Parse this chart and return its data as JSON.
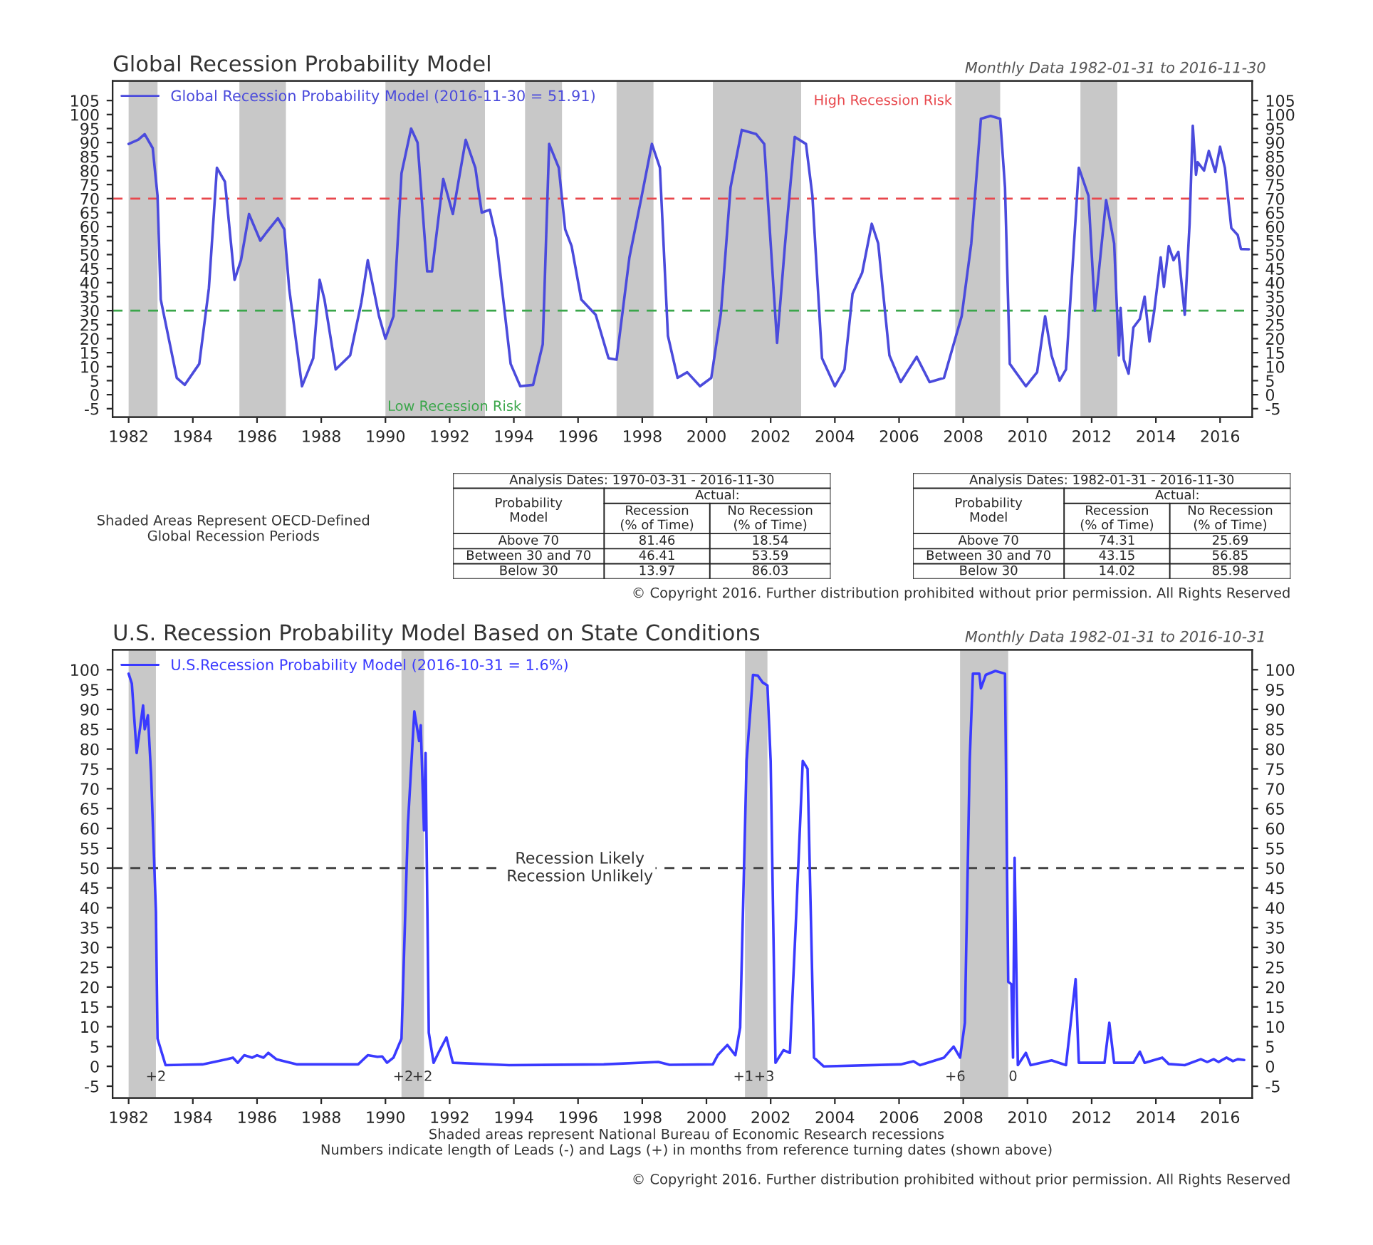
{
  "chart_data": [
    {
      "type": "line",
      "title": "Global Recession Probability Model",
      "subtitle": "Monthly Data 1982-01-31 to 2016-11-30",
      "series": [
        {
          "name": "Global Recession Probability Model (2016-11-30 = 51.91)",
          "color": "#4b4bdc",
          "x": [
            1982.0,
            1982.3,
            1982.5,
            1982.75,
            1982.9,
            1983.0,
            1983.5,
            1983.75,
            1984.2,
            1984.5,
            1984.75,
            1985.0,
            1985.3,
            1985.5,
            1985.75,
            1986.1,
            1986.3,
            1986.65,
            1986.85,
            1987.0,
            1987.4,
            1987.75,
            1987.95,
            1988.1,
            1988.45,
            1988.9,
            1989.25,
            1989.45,
            1989.8,
            1990.0,
            1990.25,
            1990.5,
            1990.8,
            1991.0,
            1991.3,
            1991.45,
            1991.8,
            1992.1,
            1992.5,
            1992.8,
            1993.0,
            1993.25,
            1993.45,
            1993.9,
            1994.2,
            1994.6,
            1994.9,
            1995.0,
            1995.1,
            1995.4,
            1995.6,
            1995.8,
            1996.1,
            1996.55,
            1996.95,
            1997.2,
            1997.6,
            1997.95,
            1998.3,
            1998.55,
            1998.8,
            1999.1,
            1999.4,
            1999.8,
            2000.15,
            2000.45,
            2000.75,
            2001.1,
            2001.55,
            2001.8,
            2002.0,
            2002.2,
            2002.45,
            2002.75,
            2003.1,
            2003.3,
            2003.6,
            2004.0,
            2004.3,
            2004.55,
            2004.85,
            2005.15,
            2005.35,
            2005.7,
            2006.05,
            2006.55,
            2006.95,
            2007.4,
            2007.95,
            2008.25,
            2008.55,
            2008.85,
            2009.15,
            2009.3,
            2009.45,
            2009.95,
            2010.3,
            2010.55,
            2010.75,
            2011.0,
            2011.2,
            2011.6,
            2011.9,
            2012.1,
            2012.45,
            2012.7,
            2012.85,
            2012.9,
            2013.0,
            2013.15,
            2013.3,
            2013.5,
            2013.65,
            2013.8,
            2013.95,
            2014.15,
            2014.25,
            2014.4,
            2014.55,
            2014.7,
            2014.9,
            2015.05,
            2015.15,
            2015.25,
            2015.3,
            2015.5,
            2015.65,
            2015.85,
            2016.0,
            2016.15,
            2016.35,
            2016.55,
            2016.65,
            2016.9
          ],
          "values": [
            89.5,
            91,
            93,
            88,
            71,
            34,
            6,
            3.5,
            11,
            38,
            81,
            76,
            41,
            48,
            64.5,
            55,
            58,
            63,
            59,
            38,
            3,
            13,
            41,
            34,
            9,
            14,
            33,
            48,
            28,
            20,
            28,
            79,
            95,
            90,
            44,
            44,
            77,
            64.5,
            91,
            81,
            65,
            66,
            56,
            11,
            3,
            3.5,
            18,
            54,
            89.5,
            81,
            59,
            53,
            34,
            28.5,
            13,
            12.5,
            49,
            69,
            89.5,
            81,
            21,
            6,
            8,
            3,
            6,
            29,
            74,
            94.5,
            93,
            89.5,
            54,
            18.5,
            54,
            92,
            89.5,
            71,
            13,
            3,
            9,
            36,
            43.5,
            61,
            54,
            14,
            4.5,
            13.5,
            4.5,
            6,
            28,
            54,
            98.5,
            99.5,
            98.5,
            74,
            11,
            3,
            8,
            28,
            14,
            5,
            9,
            81,
            71,
            30,
            69.5,
            54,
            14,
            31,
            12.5,
            7.5,
            24,
            27,
            35,
            19,
            30,
            49,
            38.5,
            53,
            48,
            51,
            28.5,
            61,
            96,
            78.5,
            83,
            80,
            87,
            79.5,
            88.5,
            81,
            59.5,
            57,
            52,
            51.9
          ]
        }
      ],
      "xlim": [
        1981.5,
        2017.0
      ],
      "xticks": [
        1982,
        1984,
        1986,
        1988,
        1990,
        1992,
        1994,
        1996,
        1998,
        2000,
        2002,
        2004,
        2006,
        2008,
        2010,
        2012,
        2014,
        2016
      ],
      "ylim": [
        -8,
        112
      ],
      "yticks": [
        -5,
        0,
        5,
        10,
        15,
        20,
        25,
        30,
        35,
        40,
        45,
        50,
        55,
        60,
        65,
        70,
        75,
        80,
        85,
        90,
        95,
        100,
        105
      ],
      "y2lim": [
        -8,
        112
      ],
      "y2ticks": [
        -5,
        0,
        5,
        10,
        15,
        20,
        25,
        30,
        35,
        40,
        45,
        50,
        55,
        60,
        65,
        70,
        75,
        80,
        85,
        90,
        95,
        100,
        105
      ],
      "ref_lines": [
        {
          "axis": "y",
          "value": 70,
          "label": "High Recession Risk",
          "color": "#e8474c",
          "line_style": "dashed"
        },
        {
          "axis": "y",
          "value": 30,
          "label": "Low Recession Risk",
          "color": "#3aa64a",
          "line_style": "dashed"
        }
      ],
      "bands": [
        {
          "axis": "x",
          "from": 1982.0,
          "to": 1982.9,
          "color": "#c8c8c8"
        },
        {
          "axis": "x",
          "from": 1985.45,
          "to": 1986.9,
          "color": "#c8c8c8"
        },
        {
          "axis": "x",
          "from": 1990.0,
          "to": 1993.1,
          "color": "#c8c8c8"
        },
        {
          "axis": "x",
          "from": 1994.35,
          "to": 1995.5,
          "color": "#c8c8c8"
        },
        {
          "axis": "x",
          "from": 1997.2,
          "to": 1998.35,
          "color": "#c8c8c8"
        },
        {
          "axis": "x",
          "from": 2000.2,
          "to": 2002.95,
          "color": "#c8c8c8"
        },
        {
          "axis": "x",
          "from": 2007.75,
          "to": 2009.15,
          "color": "#c8c8c8"
        },
        {
          "axis": "x",
          "from": 2011.65,
          "to": 2012.8,
          "color": "#c8c8c8"
        }
      ],
      "annotations": [
        "Shaded Areas Represent OECD-Defined\nGlobal Recession Periods",
        "© Copyright 2016. Further distribution prohibited without prior permission. All Rights Reserved"
      ],
      "legend": "top left",
      "marker": "none",
      "line_style": "solid",
      "grid": false
    },
    {
      "type": "other",
      "title": "Analysis Dates: 1970-03-31 - 2016-11-30",
      "annotations": [
        "Actual:",
        "Probability\nModel",
        "Recession\n(% of Time)",
        "No Recession\n(% of Time)",
        "Above 70",
        "81.46",
        "18.54",
        "Between 30 and 70",
        "46.41",
        "53.59",
        "Below 30",
        "13.97",
        "86.03"
      ]
    },
    {
      "type": "other",
      "title": "Analysis Dates: 1982-01-31 - 2016-11-30",
      "annotations": [
        "Actual:",
        "Probability\nModel",
        "Recession\n(% of Time)",
        "No Recession\n(% of Time)",
        "Above 70",
        "74.31",
        "25.69",
        "Between 30 and 70",
        "43.15",
        "56.85",
        "Below 30",
        "14.02",
        "85.98"
      ]
    },
    {
      "type": "line",
      "title": "U.S. Recession Probability Model Based on State Conditions",
      "subtitle": "Monthly Data 1982-01-31 to 2016-10-31",
      "series": [
        {
          "name": "U.S.Recession Probability Model (2016-10-31 = 1.6%)",
          "color": "#3a3aff",
          "x": [
            1982.0,
            1982.1,
            1982.25,
            1982.45,
            1982.5,
            1982.6,
            1982.7,
            1982.85,
            1982.9,
            1983.15,
            1984.3,
            1985.05,
            1985.25,
            1985.4,
            1985.6,
            1985.85,
            1986.0,
            1986.2,
            1986.35,
            1986.6,
            1987.25,
            1989.15,
            1989.45,
            1989.75,
            1989.9,
            1990.05,
            1990.25,
            1990.5,
            1990.7,
            1990.9,
            1991.05,
            1991.1,
            1991.2,
            1991.25,
            1991.35,
            1991.5,
            1991.65,
            1991.9,
            1992.1,
            1993.85,
            1996.8,
            1998.5,
            1998.85,
            2000.2,
            2000.35,
            2000.65,
            2000.9,
            2001.05,
            2001.25,
            2001.45,
            2001.6,
            2001.75,
            2001.9,
            2002.0,
            2002.15,
            2002.4,
            2002.6,
            2002.8,
            2003.0,
            2003.15,
            2003.35,
            2003.65,
            2006.05,
            2006.45,
            2006.65,
            2007.4,
            2007.7,
            2007.9,
            2008.05,
            2008.2,
            2008.3,
            2008.5,
            2008.55,
            2008.7,
            2009.0,
            2009.3,
            2009.4,
            2009.5,
            2009.55,
            2009.6,
            2009.7,
            2009.95,
            2010.1,
            2010.75,
            2011.2,
            2011.5,
            2011.6,
            2012.4,
            2012.55,
            2012.7,
            2013.3,
            2013.5,
            2013.65,
            2014.2,
            2014.4,
            2014.9,
            2015.4,
            2015.6,
            2015.8,
            2015.95,
            2016.2,
            2016.4,
            2016.55,
            2016.75
          ],
          "values": [
            99,
            96.5,
            79,
            91,
            85,
            88.5,
            73.5,
            39,
            7,
            0.3,
            0.5,
            1.8,
            2.2,
            0.9,
            2.8,
            2.2,
            2.8,
            2.2,
            3.4,
            1.8,
            0.5,
            0.5,
            2.8,
            2.4,
            2.5,
            0.9,
            2.2,
            7,
            61,
            89.5,
            82,
            86,
            59.5,
            79,
            8.5,
            0.9,
            3.4,
            7.3,
            0.9,
            0.3,
            0.5,
            1.1,
            0.4,
            0.5,
            2.8,
            5.4,
            2.8,
            9.8,
            77,
            98.7,
            98.5,
            96.8,
            96,
            77,
            0.9,
            4.1,
            3.4,
            39,
            77,
            75,
            2.2,
            0,
            0.5,
            1.3,
            0.3,
            2.2,
            5,
            2.2,
            11,
            77,
            99,
            99,
            95.3,
            98.7,
            99.7,
            99,
            21.3,
            20.7,
            2.2,
            52.6,
            0.3,
            3.4,
            0.3,
            1.5,
            0.3,
            22,
            0.9,
            0.9,
            11,
            0.9,
            0.9,
            3.7,
            0.9,
            2.2,
            0.6,
            0.3,
            1.8,
            1.1,
            1.8,
            1.1,
            2.2,
            1.3,
            1.8,
            1.6
          ]
        }
      ],
      "xlim": [
        1981.5,
        2017.0
      ],
      "xticks": [
        1982,
        1984,
        1986,
        1988,
        1990,
        1992,
        1994,
        1996,
        1998,
        2000,
        2002,
        2004,
        2006,
        2008,
        2010,
        2012,
        2014,
        2016
      ],
      "ylim": [
        -8,
        105
      ],
      "yticks": [
        -5,
        0,
        5,
        10,
        15,
        20,
        25,
        30,
        35,
        40,
        45,
        50,
        55,
        60,
        65,
        70,
        75,
        80,
        85,
        90,
        95,
        100
      ],
      "y2lim": [
        -8,
        105
      ],
      "y2ticks": [
        -5,
        0,
        5,
        10,
        15,
        20,
        25,
        30,
        35,
        40,
        45,
        50,
        55,
        60,
        65,
        70,
        75,
        80,
        85,
        90,
        95,
        100
      ],
      "ref_lines": [
        {
          "axis": "y",
          "value": 50,
          "label": "Recession Likely\nRecession Unlikely",
          "color": "#444444",
          "line_style": "dashed"
        }
      ],
      "bands": [
        {
          "axis": "x",
          "from": 1982.0,
          "to": 1982.85,
          "color": "#c8c8c8"
        },
        {
          "axis": "x",
          "from": 1990.5,
          "to": 1991.2,
          "color": "#c8c8c8"
        },
        {
          "axis": "x",
          "from": 2001.2,
          "to": 2001.9,
          "color": "#c8c8c8"
        },
        {
          "axis": "x",
          "from": 2007.9,
          "to": 2009.4,
          "color": "#c8c8c8"
        }
      ],
      "annotations": [
        {
          "text": "+2",
          "x": 1982.85,
          "y": -1
        },
        {
          "text": "+2",
          "x": 1990.55,
          "y": -1
        },
        {
          "text": "+2",
          "x": 1991.15,
          "y": -1
        },
        {
          "text": "+1",
          "x": 2001.15,
          "y": -1
        },
        {
          "text": "+3",
          "x": 2001.8,
          "y": -1
        },
        {
          "text": "+6",
          "x": 2007.75,
          "y": -1
        },
        {
          "text": "0",
          "x": 2009.55,
          "y": -1
        },
        "Shaded areas represent National Bureau of Economic Research recessions\nNumbers indicate length of Leads (-) and Lags (+) in months from reference turning dates (shown above)",
        "© Copyright 2016. Further distribution prohibited without prior permission. All Rights Reserved"
      ],
      "legend": "top left",
      "marker": "none",
      "line_style": "solid",
      "grid": false
    }
  ]
}
